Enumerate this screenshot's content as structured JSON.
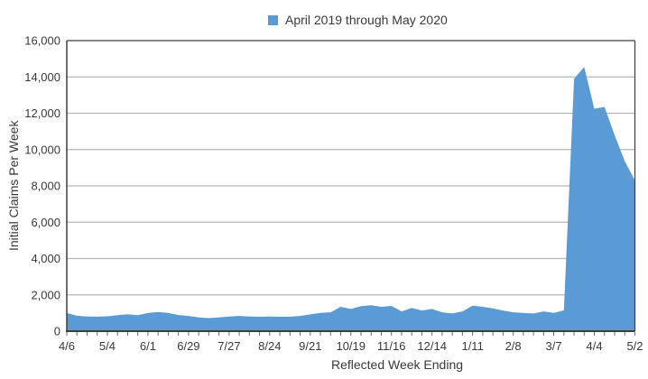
{
  "colors": {
    "area": "#5b9bd5",
    "gridline": "#b7b7b7",
    "border": "#3f3f3f",
    "tick": "#6e6e6e",
    "text": "#3a3a3a"
  },
  "chart_data": {
    "type": "area",
    "legend": "April 2019 through May 2020",
    "x_axis_title": "Reflected Week Ending",
    "y_axis_title": "Initial Claims Per Week",
    "y_min": 0,
    "y_max": 16000,
    "y_step": 2000,
    "y_tick_labels": [
      "0",
      "2,000",
      "4,000",
      "6,000",
      "8,000",
      "10,000",
      "12,000",
      "14,000",
      "16,000"
    ],
    "x_tick_labels": [
      "4/6",
      "5/4",
      "6/1",
      "6/29",
      "7/27",
      "8/24",
      "9/21",
      "10/19",
      "11/16",
      "12/14",
      "1/11",
      "2/8",
      "3/7",
      "4/4",
      "5/2"
    ],
    "x_label_every": 4,
    "grid": true,
    "legend_position": "top-center",
    "series": [
      {
        "name": "April 2019 through May 2020",
        "color": "#5b9bd5",
        "values": [
          1000,
          850,
          810,
          800,
          820,
          880,
          930,
          880,
          1000,
          1060,
          1010,
          890,
          840,
          760,
          720,
          760,
          810,
          840,
          810,
          795,
          810,
          795,
          795,
          840,
          925,
          1010,
          1040,
          1340,
          1220,
          1375,
          1425,
          1340,
          1390,
          1090,
          1280,
          1140,
          1220,
          1040,
          975,
          1090,
          1400,
          1340,
          1255,
          1140,
          1040,
          1010,
          975,
          1090,
          1010,
          1150,
          13900,
          14550,
          12250,
          12350,
          10800,
          9350,
          8300
        ]
      }
    ]
  }
}
